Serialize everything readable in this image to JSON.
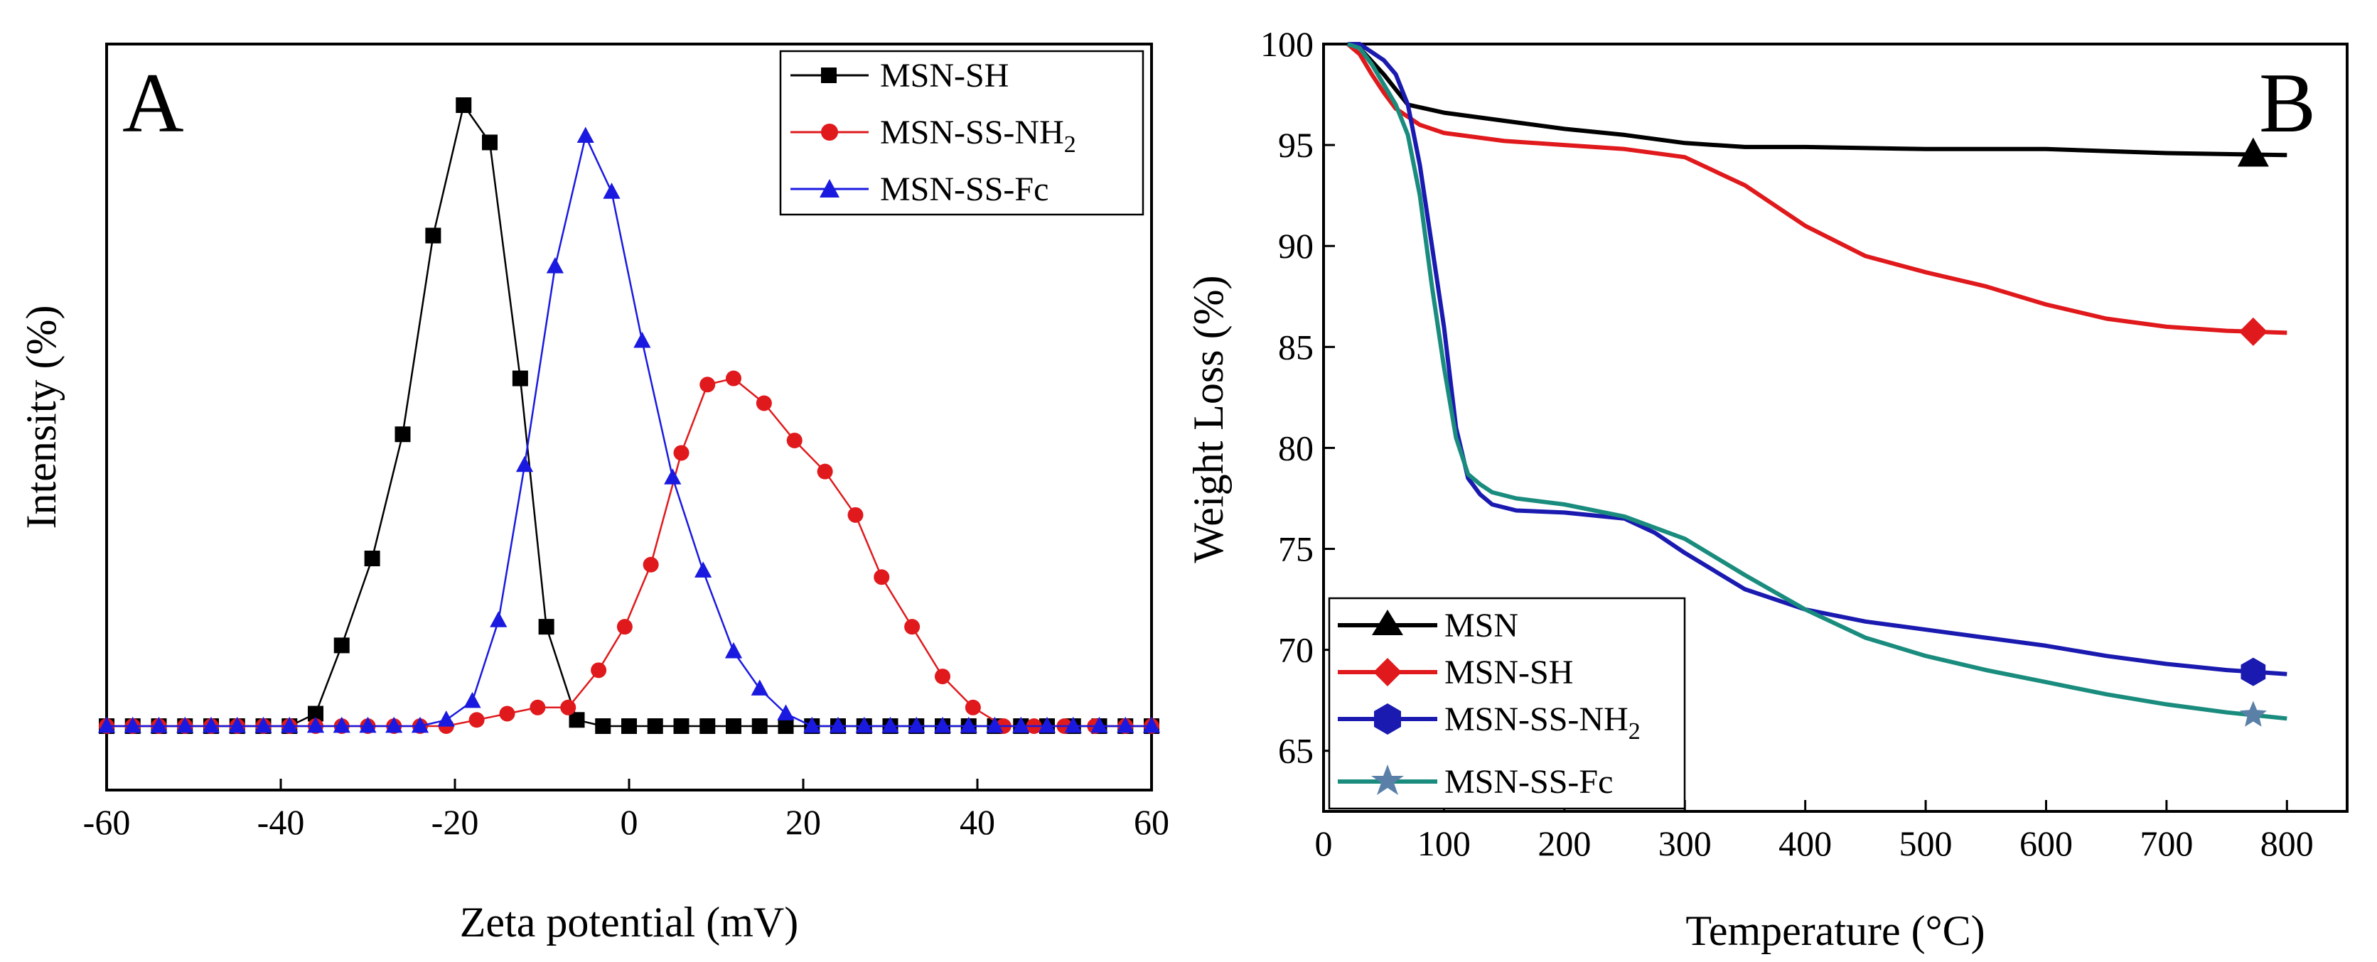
{
  "chart_data": [
    {
      "panel": "A",
      "type": "line",
      "xlabel": "Zeta potential (mV)",
      "ylabel": "Intensity (%)",
      "xlim": [
        -60,
        60
      ],
      "ylim": [
        0,
        100
      ],
      "xticks": [
        -60,
        -40,
        -20,
        0,
        20,
        40,
        60
      ],
      "yticks_shown": false,
      "legend_position": "top-right",
      "series": [
        {
          "name": "MSN-SH",
          "color": "#000000",
          "marker": "square",
          "x": [
            -60,
            -57,
            -54,
            -51,
            -48,
            -45,
            -42,
            -39,
            -36,
            -33,
            -29.5,
            -26,
            -22.5,
            -19,
            -16,
            -12.5,
            -9.5,
            -6,
            -3,
            0,
            3,
            6,
            9,
            12,
            15,
            18,
            21,
            24,
            27,
            30,
            33,
            36,
            39,
            42,
            45,
            48,
            51,
            54,
            57,
            60
          ],
          "y": [
            0,
            0,
            0,
            0,
            0,
            0,
            0,
            0,
            2,
            13,
            27,
            47,
            79,
            100,
            94,
            56,
            16,
            1,
            0,
            0,
            0,
            0,
            0,
            0,
            0,
            0,
            0,
            0,
            0,
            0,
            0,
            0,
            0,
            0,
            0,
            0,
            0,
            0,
            0,
            0
          ]
        },
        {
          "name": "MSN-SS-NH",
          "name_subscript": "2",
          "color": "#e0191c",
          "marker": "circle",
          "x": [
            -60,
            -57,
            -54,
            -51,
            -48,
            -45,
            -42,
            -39,
            -36,
            -33,
            -30,
            -27,
            -24,
            -21,
            -17.5,
            -14,
            -10.5,
            -7,
            -3.5,
            -0.5,
            2.5,
            6,
            9,
            12,
            15.5,
            19,
            22.5,
            26,
            29,
            32.5,
            36,
            39.5,
            43,
            46.5,
            50,
            53.5,
            57,
            60
          ],
          "y": [
            0,
            0,
            0,
            0,
            0,
            0,
            0,
            0,
            0,
            0,
            0,
            0,
            0,
            0,
            1,
            2,
            3,
            3,
            9,
            16,
            26,
            44,
            55,
            56,
            52,
            46,
            41,
            34,
            24,
            16,
            8,
            3,
            0,
            0,
            0,
            0,
            0,
            0
          ]
        },
        {
          "name": "MSN-SS-Fc",
          "color": "#1a19e0",
          "marker": "triangle",
          "x": [
            -60,
            -57,
            -54,
            -51,
            -48,
            -45,
            -42,
            -39,
            -36,
            -33,
            -30,
            -27,
            -24,
            -21,
            -18,
            -15,
            -12,
            -8.5,
            -5,
            -2,
            1.5,
            5,
            8.5,
            12,
            15,
            18,
            21,
            24,
            27,
            30,
            33,
            36,
            39,
            42,
            45,
            48,
            51,
            54,
            57,
            60
          ],
          "y": [
            0,
            0,
            0,
            0,
            0,
            0,
            0,
            0,
            0,
            0,
            0,
            0,
            0,
            1,
            4,
            17,
            42,
            74,
            95,
            86,
            62,
            40,
            25,
            12,
            6,
            2,
            0,
            0,
            0,
            0,
            0,
            0,
            0,
            0,
            0,
            0,
            0,
            0,
            0,
            0
          ]
        }
      ]
    },
    {
      "panel": "B",
      "type": "line",
      "xlabel": "Temperature (°C)",
      "ylabel": "Weight Loss (%)",
      "xlim": [
        0,
        850
      ],
      "ylim": [
        62,
        100
      ],
      "xticks": [
        0,
        100,
        200,
        300,
        400,
        500,
        600,
        700,
        800
      ],
      "yticks": [
        65,
        70,
        75,
        80,
        85,
        90,
        95,
        100
      ],
      "legend_position": "bottom-left",
      "series": [
        {
          "name": "MSN",
          "color": "#000000",
          "marker": "triangle",
          "marker_x": 772,
          "x": [
            20,
            30,
            50,
            70,
            100,
            150,
            200,
            250,
            300,
            350,
            400,
            500,
            600,
            700,
            800
          ],
          "y": [
            100,
            99.8,
            98.5,
            97,
            96.6,
            96.2,
            95.8,
            95.5,
            95.1,
            94.9,
            94.9,
            94.8,
            94.8,
            94.6,
            94.5
          ]
        },
        {
          "name": "MSN-SH",
          "color": "#e0191c",
          "marker": "diamond",
          "marker_x": 772,
          "x": [
            20,
            30,
            40,
            50,
            60,
            80,
            100,
            150,
            200,
            250,
            300,
            350,
            400,
            450,
            500,
            550,
            600,
            650,
            700,
            750,
            800
          ],
          "y": [
            100,
            99.5,
            98.5,
            97.6,
            96.8,
            96,
            95.6,
            95.2,
            95,
            94.8,
            94.4,
            93,
            91,
            89.5,
            88.7,
            88,
            87.1,
            86.4,
            86,
            85.8,
            85.7
          ]
        },
        {
          "name": "MSN-SS-NH",
          "name_subscript": "2",
          "color": "#1a1ab0",
          "marker": "hexagon",
          "marker_x": 772,
          "x": [
            20,
            30,
            40,
            50,
            60,
            70,
            80,
            90,
            100,
            110,
            120,
            130,
            140,
            160,
            200,
            250,
            275,
            300,
            350,
            400,
            450,
            500,
            550,
            600,
            650,
            700,
            750,
            800
          ],
          "y": [
            100,
            100,
            99.6,
            99.2,
            98.5,
            97,
            94,
            90,
            86,
            81,
            78.5,
            77.7,
            77.2,
            76.9,
            76.8,
            76.5,
            75.8,
            74.8,
            73,
            72,
            71.4,
            71,
            70.6,
            70.2,
            69.7,
            69.3,
            69,
            68.8
          ]
        },
        {
          "name": "MSN-SS-Fc",
          "color": "#1a8c7e",
          "marker": "star",
          "marker_x": 772,
          "x": [
            20,
            30,
            40,
            50,
            60,
            70,
            80,
            90,
            100,
            110,
            120,
            130,
            140,
            160,
            200,
            250,
            300,
            350,
            400,
            450,
            500,
            550,
            600,
            650,
            700,
            750,
            800
          ],
          "y": [
            100,
            99.8,
            99,
            98,
            97,
            95.5,
            92.5,
            88,
            84,
            80.5,
            78.7,
            78.2,
            77.8,
            77.5,
            77.2,
            76.6,
            75.5,
            73.7,
            72,
            70.6,
            69.7,
            69,
            68.4,
            67.8,
            67.3,
            66.9,
            66.6
          ]
        }
      ]
    }
  ],
  "panels": {
    "a": {
      "letter": "A",
      "xlabel": "Zeta potential (mV)",
      "ylabel": "Intensity (%)",
      "legend": [
        "MSN-SH",
        "MSN-SS-NH",
        "MSN-SS-Fc"
      ],
      "legend_sub": "2"
    },
    "b": {
      "letter": "B",
      "xlabel": "Temperature (°C)",
      "ylabel": "Weight Loss (%)",
      "legend": [
        "MSN",
        "MSN-SH",
        "MSN-SS-NH",
        "MSN-SS-Fc"
      ],
      "legend_sub": "2"
    }
  }
}
